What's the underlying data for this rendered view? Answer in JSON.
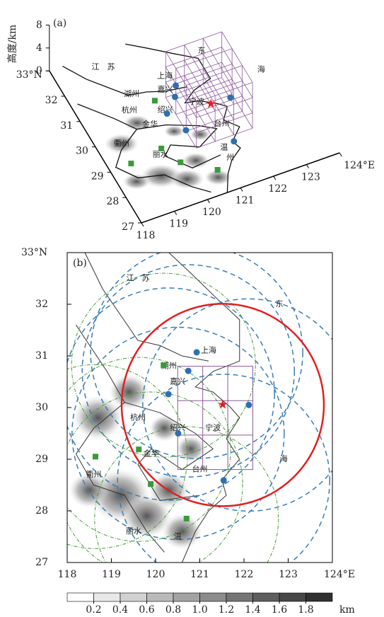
{
  "panel_a": {
    "label": "(a)",
    "z_axis_label": "高度/km",
    "zticks": [
      0,
      4,
      8
    ],
    "xticks": [
      118,
      119,
      120,
      121,
      122,
      123,
      {
        "value": 124,
        "label": "124°E"
      }
    ],
    "yticks": [
      27,
      28,
      29,
      30,
      31,
      32,
      {
        "value": 33,
        "label": "33°N"
      }
    ],
    "place_names": [
      "江　苏",
      "上海",
      "湖州",
      "嘉兴",
      "绍兴",
      "宁波",
      "杭州",
      "金华",
      "台州",
      "衢州",
      "丽水",
      "温",
      "州",
      "东",
      "海"
    ]
  },
  "panel_b": {
    "label": "(b)",
    "xlim": [
      118,
      124
    ],
    "ylim": [
      27,
      33
    ],
    "xticks": [
      118,
      119,
      120,
      121,
      122,
      123,
      {
        "value": 124,
        "label": "124°E"
      }
    ],
    "yticks": [
      27,
      28,
      29,
      30,
      31,
      32,
      {
        "value": 33,
        "label": "33°N"
      }
    ],
    "place_names": [
      "江　苏",
      "东",
      "上海",
      "湖州",
      "嘉兴",
      "杭州",
      "绍兴",
      "宁波",
      "金华",
      "衢州",
      "台州",
      "丽水",
      "温",
      "海"
    ]
  },
  "sites": {
    "blue": [
      [
        120.93,
        31.07
      ],
      [
        120.74,
        30.71
      ],
      [
        120.29,
        30.26
      ],
      [
        122.11,
        30.05
      ],
      [
        120.51,
        29.5
      ],
      [
        121.54,
        28.59
      ]
    ],
    "green": [
      [
        120.18,
        30.82
      ],
      [
        119.62,
        29.19
      ],
      [
        118.64,
        29.05
      ],
      [
        119.89,
        28.52
      ],
      [
        120.7,
        27.85
      ]
    ],
    "star": [
      121.52,
      30.05
    ]
  },
  "colorbar": {
    "unit": "km",
    "lim": [
      0,
      2
    ],
    "ticks": [
      0.2,
      0.4,
      0.6,
      0.8,
      {
        "value": 1,
        "label": "1.0"
      },
      1.2,
      1.4,
      1.6,
      1.8
    ]
  }
}
